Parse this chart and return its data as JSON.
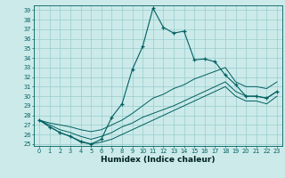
{
  "hours": [
    0,
    1,
    2,
    3,
    4,
    5,
    6,
    7,
    8,
    9,
    10,
    11,
    12,
    13,
    14,
    15,
    16,
    17,
    18,
    19,
    20,
    21,
    22,
    23
  ],
  "humidex_main": [
    27.5,
    26.8,
    26.2,
    25.8,
    25.3,
    25.0,
    25.5,
    27.8,
    29.2,
    32.8,
    35.2,
    39.2,
    37.2,
    36.6,
    36.8,
    33.8,
    33.9,
    33.6,
    32.2,
    31.2,
    30.0,
    30.0,
    29.8,
    30.5
  ],
  "line_upper": [
    27.5,
    27.2,
    27.0,
    26.8,
    26.5,
    26.3,
    26.5,
    27.0,
    27.5,
    28.2,
    29.0,
    29.8,
    30.2,
    30.8,
    31.2,
    31.8,
    32.2,
    32.6,
    33.0,
    31.5,
    31.0,
    31.0,
    30.8,
    31.5
  ],
  "line_mid": [
    27.5,
    27.0,
    26.5,
    26.2,
    25.8,
    25.5,
    25.8,
    26.2,
    26.8,
    27.2,
    27.8,
    28.2,
    28.6,
    29.0,
    29.5,
    30.0,
    30.5,
    31.0,
    31.5,
    30.5,
    30.0,
    30.0,
    29.8,
    30.5
  ],
  "line_lower": [
    27.5,
    26.8,
    26.2,
    25.8,
    25.2,
    25.0,
    25.2,
    25.5,
    26.0,
    26.5,
    27.0,
    27.5,
    28.0,
    28.5,
    29.0,
    29.5,
    30.0,
    30.5,
    31.0,
    30.0,
    29.5,
    29.5,
    29.2,
    30.0
  ],
  "bg_color": "#cceaea",
  "line_color": "#005f5f",
  "grid_color": "#99cccc",
  "xlabel": "Humidex (Indice chaleur)",
  "ylim_min": 25,
  "ylim_max": 39,
  "xlim_min": 0,
  "xlim_max": 23
}
